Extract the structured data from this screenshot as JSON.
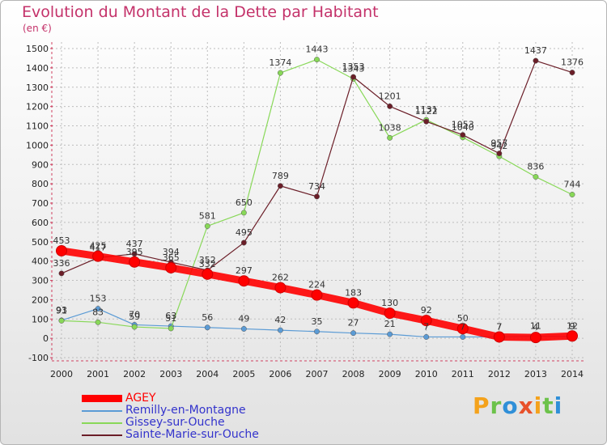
{
  "chart_data": {
    "type": "line",
    "title": "Evolution du Montant de la Dette par Habitant",
    "subtitle": "(en €)",
    "x": [
      "2000",
      "2001",
      "2002",
      "2003",
      "2004",
      "2005",
      "2006",
      "2007",
      "2008",
      "2009",
      "2010",
      "2011",
      "2012",
      "2013",
      "2014"
    ],
    "ylim": [
      -100,
      1500
    ],
    "yticks": [
      -100,
      0,
      100,
      200,
      300,
      400,
      500,
      600,
      700,
      800,
      900,
      1000,
      1100,
      1200,
      1300,
      1400,
      1500
    ],
    "grid": true,
    "legend_position": "bottom-left",
    "series": [
      {
        "name": "AGEY",
        "color": "#ff0000",
        "values": [
          453,
          425,
          395,
          365,
          332,
          297,
          262,
          224,
          183,
          130,
          92,
          50,
          7,
          4,
          12
        ]
      },
      {
        "name": "Remilly-en-Montagne",
        "color": "#5b9bd5",
        "values": [
          93,
          153,
          70,
          63,
          56,
          49,
          42,
          35,
          27,
          21,
          7,
          7,
          7,
          11,
          9
        ]
      },
      {
        "name": "Gissey-sur-Ouche",
        "color": "#88d858",
        "values": [
          91,
          83,
          59,
          51,
          581,
          650,
          1374,
          1443,
          1343,
          1038,
          1131,
          1040,
          942,
          836,
          744
        ]
      },
      {
        "name": "Sainte-Marie-sur-Ouche",
        "color": "#6b1e28",
        "values": [
          336,
          417,
          437,
          394,
          352,
          495,
          789,
          734,
          1353,
          1201,
          1122,
          1053,
          957,
          1437,
          1376
        ]
      }
    ]
  },
  "logo": {
    "letters": [
      "P",
      "r",
      "o",
      "x",
      "i",
      "t",
      "i"
    ],
    "colors": [
      "#f4a21c",
      "#6cc24a",
      "#2f8fd8",
      "#e8512b",
      "#f4a21c",
      "#6cc24a",
      "#2f8fd8"
    ]
  }
}
